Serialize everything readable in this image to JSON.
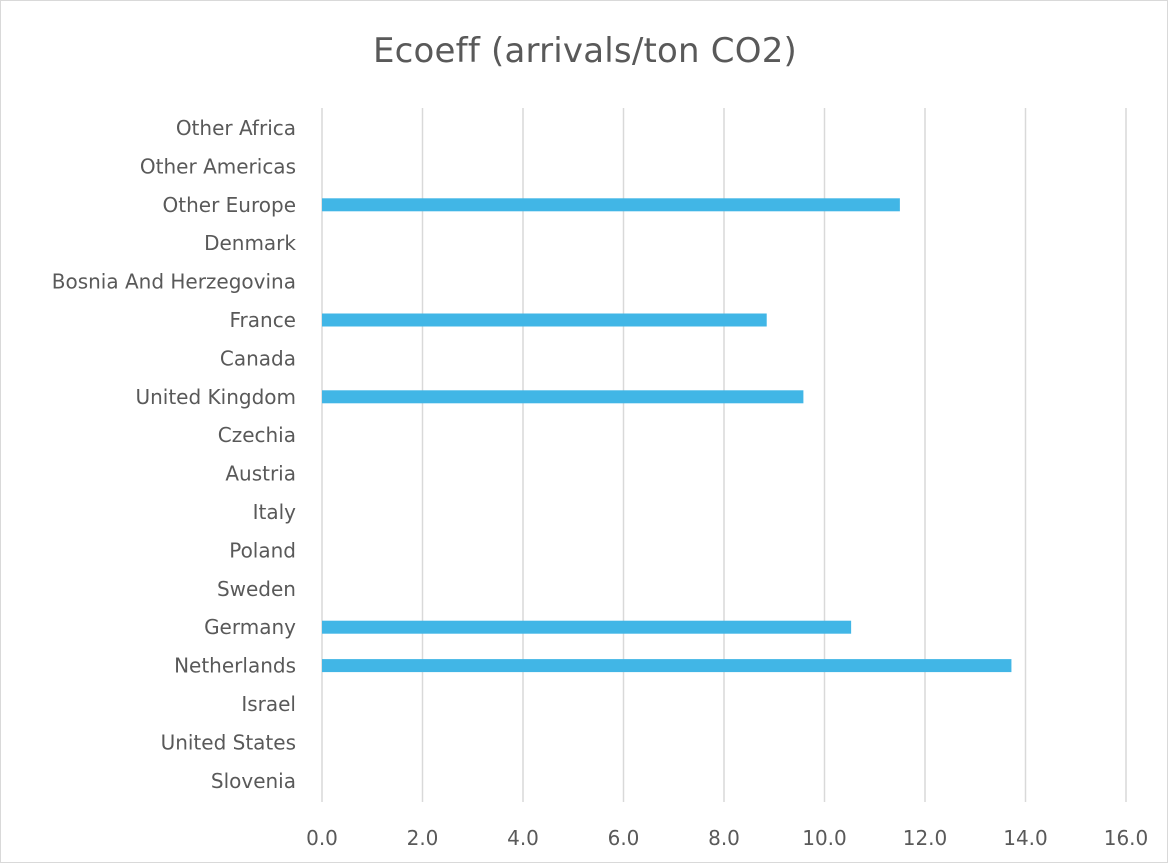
{
  "chart_data": {
    "type": "bar",
    "orientation": "horizontal",
    "title": "Ecoeff (arrivals/ton CO2)",
    "xlabel": "",
    "ylabel": "",
    "categories": [
      "Other Africa",
      "Other Americas",
      "Other Europe",
      "Denmark",
      "Bosnia And Herzegovina",
      "France",
      "Canada",
      "United Kingdom",
      "Czechia",
      "Austria",
      "Italy",
      "Poland",
      "Sweden",
      "Germany",
      "Netherlands",
      "Israel",
      "United States",
      "Slovenia"
    ],
    "values": [
      0,
      0,
      11.5,
      0,
      0,
      8.85,
      0,
      9.58,
      0,
      0,
      0,
      0,
      0,
      10.53,
      13.72,
      0,
      0,
      0
    ],
    "xlim": [
      0,
      16
    ],
    "xticks": [
      "0.0",
      "2.0",
      "4.0",
      "6.0",
      "8.0",
      "10.0",
      "12.0",
      "14.0",
      "16.0"
    ],
    "grid": "vertical",
    "legend": "none",
    "bar_color": "#41b6e6"
  }
}
